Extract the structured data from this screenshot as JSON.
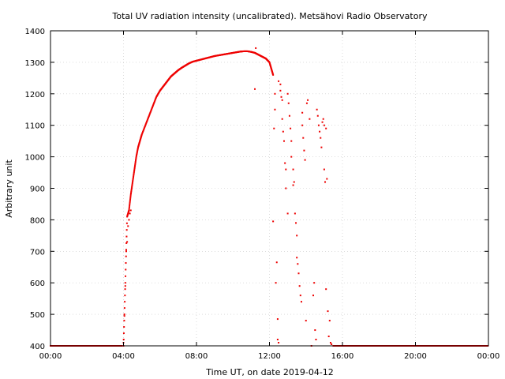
{
  "chart_data": {
    "type": "scatter",
    "title": "Total UV radiation intensity (uncalibrated). Metsähovi Radio Observatory",
    "xlabel": "Time UT, on date 2019-04-12",
    "ylabel": "Arbitrary unit",
    "xlim": [
      0,
      24
    ],
    "ylim": [
      400,
      1400
    ],
    "xticks": [
      0,
      4,
      8,
      12,
      16,
      20,
      24
    ],
    "xtick_labels": [
      "00:00",
      "04:00",
      "08:00",
      "12:00",
      "16:00",
      "20:00",
      "00:00"
    ],
    "yticks": [
      400,
      500,
      600,
      700,
      800,
      900,
      1000,
      1100,
      1200,
      1300,
      1400
    ],
    "ytick_labels": [
      "400",
      "500",
      "600",
      "700",
      "800",
      "900",
      "1000",
      "1100",
      "1200",
      "1300",
      "1400"
    ],
    "grid": true,
    "marker_color": "#ee0000",
    "baseline_segments": [
      {
        "x_start": 0,
        "x_end": 3.95,
        "y": 400
      },
      {
        "x_start": 15.5,
        "x_end": 24,
        "y": 400
      }
    ],
    "curve_x": [
      4.0,
      4.1,
      4.2,
      4.3,
      4.4,
      4.5,
      4.6,
      4.7,
      4.8,
      4.9,
      5.0,
      5.2,
      5.4,
      5.6,
      5.8,
      6.0,
      6.2,
      6.4,
      6.6,
      6.8,
      7.0,
      7.2,
      7.4,
      7.6,
      7.8,
      8.0,
      8.2,
      8.4,
      8.6,
      8.8,
      9.0,
      9.2,
      9.4,
      9.6,
      9.8,
      10.0,
      10.2,
      10.4,
      10.6,
      10.8,
      11.0,
      11.2,
      11.4,
      11.6,
      11.8,
      12.0,
      12.1,
      12.2
    ],
    "curve_y": [
      400,
      600,
      810,
      830,
      880,
      920,
      960,
      1000,
      1030,
      1050,
      1070,
      1100,
      1130,
      1160,
      1190,
      1210,
      1225,
      1240,
      1255,
      1265,
      1275,
      1283,
      1290,
      1297,
      1302,
      1305,
      1308,
      1311,
      1314,
      1317,
      1320,
      1322,
      1324,
      1326,
      1328,
      1330,
      1332,
      1334,
      1335,
      1335,
      1333,
      1330,
      1324,
      1318,
      1312,
      1300,
      1280,
      1260
    ],
    "scatter_x": [
      4.0,
      4.05,
      4.1,
      4.15,
      4.2,
      4.25,
      4.3,
      4.35,
      4.4,
      11.2,
      11.25,
      12.2,
      12.25,
      12.3,
      12.3,
      12.35,
      12.4,
      12.45,
      12.45,
      12.5,
      12.5,
      12.6,
      12.6,
      12.65,
      12.7,
      12.7,
      12.75,
      12.8,
      12.85,
      12.9,
      12.9,
      13.0,
      13.0,
      13.05,
      13.1,
      13.15,
      13.2,
      13.2,
      13.3,
      13.3,
      13.35,
      13.4,
      13.45,
      13.5,
      13.5,
      13.55,
      13.6,
      13.65,
      13.7,
      13.75,
      13.8,
      13.8,
      13.85,
      13.9,
      13.95,
      14.0,
      14.05,
      14.1,
      14.2,
      14.3,
      14.4,
      14.45,
      14.5,
      14.55,
      14.6,
      14.65,
      14.7,
      14.75,
      14.8,
      14.85,
      14.9,
      14.95,
      15.0,
      15.0,
      15.05,
      15.1,
      15.1,
      15.15,
      15.2,
      15.25,
      15.3,
      15.35,
      15.4
    ],
    "scatter_y": [
      410,
      495,
      590,
      700,
      730,
      780,
      800,
      820,
      830,
      1215,
      1345,
      795,
      1090,
      1200,
      1150,
      600,
      665,
      485,
      420,
      410,
      1240,
      1230,
      1210,
      1190,
      1180,
      1120,
      1080,
      1050,
      980,
      960,
      900,
      820,
      1200,
      1170,
      1130,
      1090,
      1050,
      1000,
      960,
      910,
      920,
      820,
      790,
      750,
      680,
      660,
      630,
      590,
      560,
      540,
      1140,
      1100,
      1060,
      1020,
      990,
      480,
      1170,
      1180,
      1120,
      400,
      560,
      600,
      450,
      420,
      1150,
      1130,
      1100,
      1080,
      1060,
      1030,
      1110,
      1120,
      1100,
      960,
      920,
      1090,
      580,
      930,
      510,
      430,
      480,
      410,
      405
    ]
  }
}
